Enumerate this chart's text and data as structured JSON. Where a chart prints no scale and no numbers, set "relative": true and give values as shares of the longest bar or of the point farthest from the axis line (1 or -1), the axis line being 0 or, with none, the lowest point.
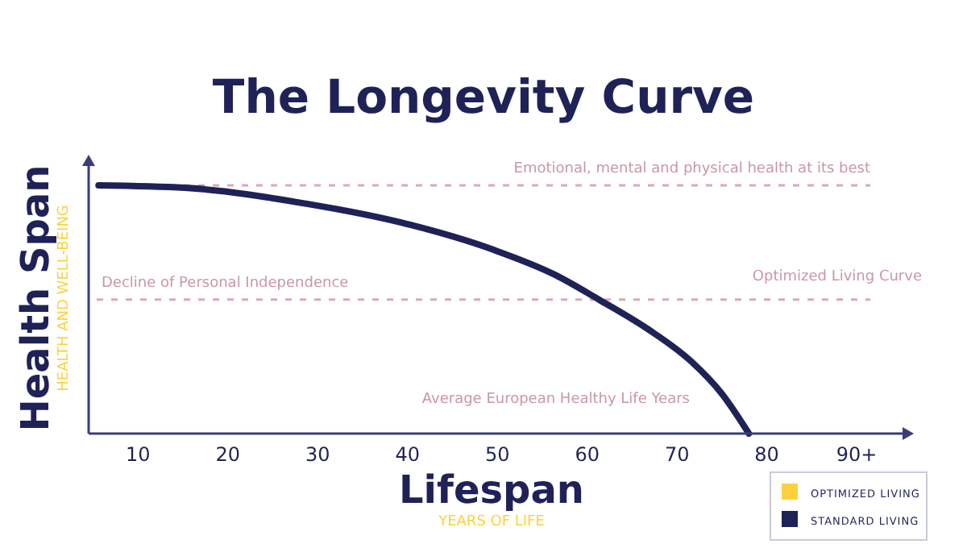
{
  "chart_data": {
    "type": "line",
    "title": "The Longevity Curve",
    "xlabel": "Lifespan",
    "ylabel": "Health Span",
    "relative": true,
    "x": [
      5.6,
      15.2,
      28.9,
      39.3,
      49.6,
      56.4,
      61.3,
      66.8,
      71.6,
      75,
      78
    ],
    "series": [
      {
        "name": "OPTIMIZED LIVING",
        "color": "#fcd13f",
        "values": [
          null,
          null,
          null,
          null,
          null,
          null,
          null,
          null,
          null,
          null,
          null
        ]
      },
      {
        "name": "STANDARD LIVING",
        "color": "#1f2257",
        "values": [
          1,
          0.99,
          0.925,
          0.85,
          0.74,
          0.64,
          0.54,
          0.42,
          0.29,
          0.16,
          0
        ]
      }
    ],
    "xlim": [
      4.5,
      96
    ],
    "xticks": [
      10,
      20,
      30,
      40,
      50,
      60,
      70,
      80,
      {
        "value": 90,
        "label": "90+"
      }
    ],
    "ref_lines": [
      {
        "axis": "y",
        "value": 1,
        "label": "Emotional, mental and physical health at its best",
        "color": "#d9a9b9",
        "line_style": "dashed"
      },
      {
        "axis": "y",
        "value": 0.54,
        "label": "Decline of Personal Independence",
        "color": "#d9a9b9",
        "line_style": "dashed"
      }
    ],
    "annotations": [
      "HEALTH AND WELL-BEING",
      "YEARS OF LIFE",
      "Optimized Living Curve",
      "Average European Healthy Life Years"
    ],
    "legend": "bottom right"
  }
}
